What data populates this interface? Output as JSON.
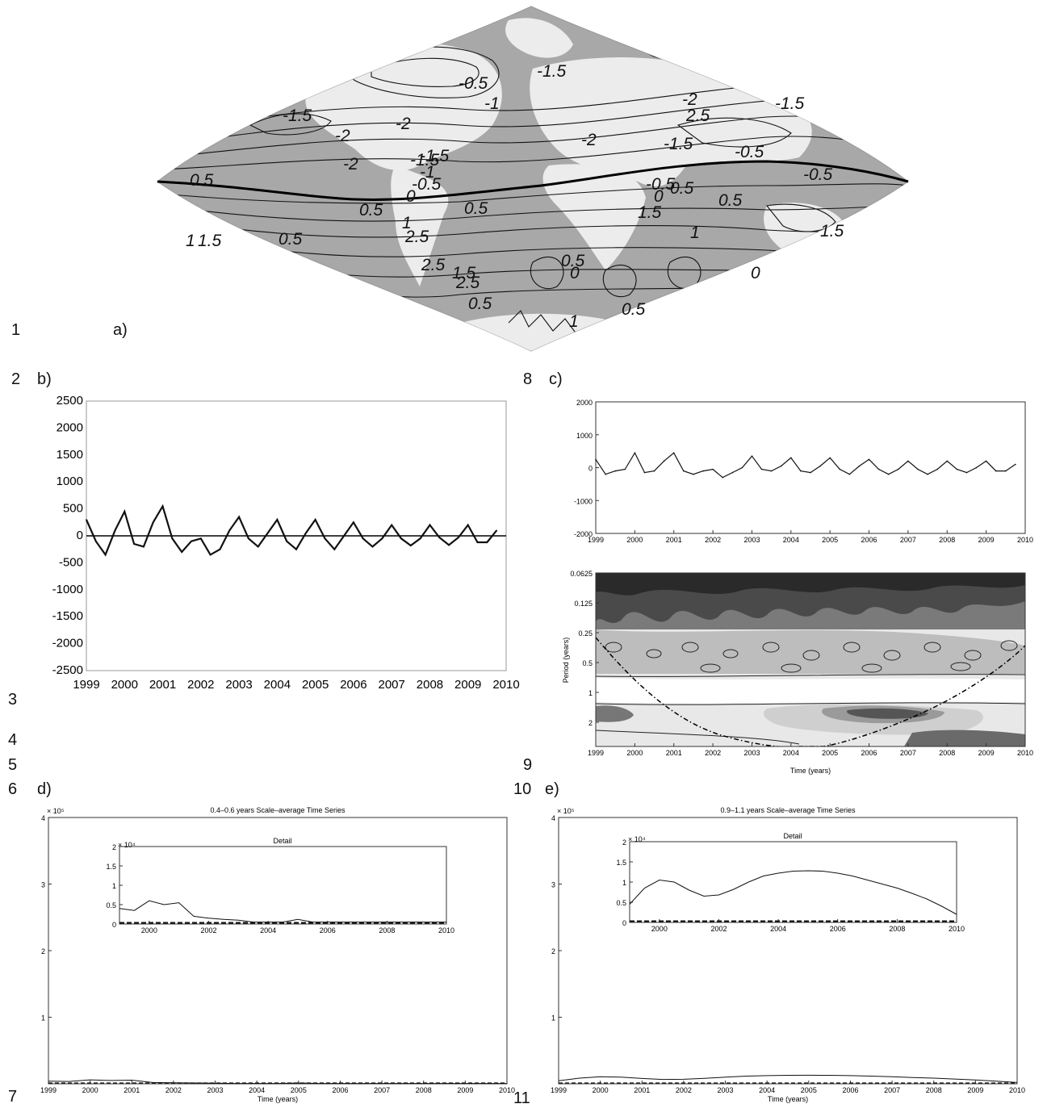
{
  "line_numbers": [
    "1",
    "2",
    "3",
    "4",
    "5",
    "6",
    "7",
    "8",
    "9",
    "10",
    "11"
  ],
  "panel_labels": {
    "a": "a)",
    "b": "b)",
    "c": "c)",
    "d": "d)",
    "e": "e)"
  },
  "map_contour_labels": [
    "-0.5",
    "-1",
    "-1.5",
    "-1.5",
    "-2",
    "-2",
    "-2",
    "-1.5",
    "-2",
    "2.5",
    "-1.5",
    "-1.5",
    "-0.5",
    "-2",
    "-1.5",
    "-1",
    "-0.5",
    "-0.5",
    "0.5",
    "0.5",
    "0.5",
    "0",
    "0.5",
    "0",
    "-0.5",
    "0.5",
    "0.5",
    "1.5",
    "1",
    "1",
    "2.5",
    "1.5",
    "2.5",
    "1.5",
    "2.5",
    "1.5",
    "1",
    "0.5",
    "0",
    "0",
    "0.5",
    "0.5",
    "1"
  ],
  "colors": {
    "land": "#eeeeee",
    "ocean": "#a8a8a8",
    "contour": "#111111",
    "axis": "#222222"
  },
  "chart_data": [
    {
      "panel": "b",
      "type": "line",
      "xlim": [
        1999,
        2010
      ],
      "ylim": [
        -2500,
        2500
      ],
      "x_ticks": [
        "1999",
        "2000",
        "2001",
        "2002",
        "2003",
        "2004",
        "2005",
        "2006",
        "2007",
        "2008",
        "2009",
        "2010"
      ],
      "y_ticks": [
        "2500",
        "2000",
        "1500",
        "1000",
        "500",
        "0",
        "-500",
        "-1000",
        "-1500",
        "-2000",
        "-2500"
      ],
      "x": [
        1999.0,
        1999.25,
        1999.5,
        1999.75,
        2000.0,
        2000.25,
        2000.5,
        2000.75,
        2001.0,
        2001.25,
        2001.5,
        2001.75,
        2002.0,
        2002.25,
        2002.5,
        2002.75,
        2003.0,
        2003.25,
        2003.5,
        2003.75,
        2004.0,
        2004.25,
        2004.5,
        2004.75,
        2005.0,
        2005.25,
        2005.5,
        2005.75,
        2006.0,
        2006.25,
        2006.5,
        2006.75,
        2007.0,
        2007.25,
        2007.5,
        2007.75,
        2008.0,
        2008.25,
        2008.5,
        2008.75,
        2009.0,
        2009.25,
        2009.5,
        2009.75
      ],
      "y": [
        300,
        -100,
        -350,
        100,
        450,
        -150,
        -200,
        250,
        550,
        -50,
        -300,
        -100,
        -50,
        -350,
        -250,
        100,
        350,
        -50,
        -200,
        50,
        300,
        -100,
        -250,
        50,
        300,
        -50,
        -250,
        0,
        250,
        -50,
        -200,
        -50,
        200,
        -50,
        -180,
        -50,
        200,
        -30,
        -170,
        -30,
        200,
        -120,
        -120,
        100
      ]
    },
    {
      "panel": "c-top",
      "type": "line",
      "xlim": [
        1999,
        2010
      ],
      "ylim": [
        -2000,
        2000
      ],
      "x_ticks": [
        "1999",
        "2000",
        "2001",
        "2002",
        "2003",
        "2004",
        "2005",
        "2006",
        "2007",
        "2008",
        "2009",
        "2010"
      ],
      "y_ticks": [
        "2000",
        "1000",
        "0",
        "-1000",
        "-2000"
      ],
      "x": [
        1999.0,
        1999.25,
        1999.5,
        1999.75,
        2000.0,
        2000.25,
        2000.5,
        2000.75,
        2001.0,
        2001.25,
        2001.5,
        2001.75,
        2002.0,
        2002.25,
        2002.5,
        2002.75,
        2003.0,
        2003.25,
        2003.5,
        2003.75,
        2004.0,
        2004.25,
        2004.5,
        2004.75,
        2005.0,
        2005.25,
        2005.5,
        2005.75,
        2006.0,
        2006.25,
        2006.5,
        2006.75,
        2007.0,
        2007.25,
        2007.5,
        2007.75,
        2008.0,
        2008.25,
        2008.5,
        2008.75,
        2009.0,
        2009.25,
        2009.5,
        2009.75
      ],
      "y": [
        250,
        -200,
        -100,
        -50,
        450,
        -150,
        -100,
        200,
        450,
        -100,
        -200,
        -100,
        -50,
        -300,
        -150,
        0,
        350,
        -50,
        -100,
        50,
        300,
        -100,
        -150,
        50,
        300,
        -50,
        -200,
        50,
        250,
        -50,
        -200,
        -50,
        200,
        -50,
        -200,
        -50,
        200,
        -50,
        -150,
        0,
        200,
        -100,
        -100,
        100
      ]
    },
    {
      "panel": "c-bottom",
      "type": "heatmap",
      "xlabel": "Time (years)",
      "ylabel": "Period (years)",
      "xlim": [
        1999,
        2010
      ],
      "x_ticks": [
        "1999",
        "2000",
        "2001",
        "2002",
        "2003",
        "2004",
        "2005",
        "2006",
        "2007",
        "2008",
        "2009",
        "2010"
      ],
      "y_ticks": [
        "0.0625",
        "0.125",
        "0.25",
        "0.5",
        "1",
        "2"
      ]
    },
    {
      "panel": "d",
      "type": "line",
      "title": "0.4–0.6 years Scale–average Time Series",
      "xlabel": "Time (years)",
      "y_exponent": "× 10⁵",
      "xlim": [
        1999,
        2010
      ],
      "ylim": [
        0,
        4
      ],
      "x_ticks": [
        "1999",
        "2000",
        "2001",
        "2002",
        "2003",
        "2004",
        "2005",
        "2006",
        "2007",
        "2008",
        "2009",
        "2010"
      ],
      "y_ticks": [
        "4",
        "3",
        "2",
        "1"
      ],
      "inset": {
        "title": "Detail",
        "y_exponent": "× 10⁴",
        "xlim": [
          1999,
          2010
        ],
        "ylim": [
          0,
          2
        ],
        "x_ticks": [
          "2000",
          "2002",
          "2004",
          "2006",
          "2008",
          "2010"
        ],
        "y_ticks": [
          "2",
          "1.5",
          "1",
          "0.5",
          "0"
        ],
        "x": [
          1999.0,
          1999.5,
          2000.0,
          2000.5,
          2001.0,
          2001.5,
          2002.0,
          2002.5,
          2003.0,
          2003.5,
          2004.0,
          2004.5,
          2005.0,
          2005.5,
          2006.0,
          2006.5,
          2007.0,
          2008.0,
          2009.0,
          2010.0
        ],
        "y": [
          0.4,
          0.35,
          0.6,
          0.5,
          0.55,
          0.2,
          0.15,
          0.12,
          0.1,
          0.05,
          0.05,
          0.05,
          0.12,
          0.05,
          0.05,
          0.05,
          0.05,
          0.05,
          0.05,
          0.05
        ]
      }
    },
    {
      "panel": "e",
      "type": "line",
      "title": "0.9–1.1 years Scale–average Time Series",
      "xlabel": "Time (years)",
      "y_exponent": "× 10⁵",
      "xlim": [
        1999,
        2010
      ],
      "ylim": [
        0,
        4
      ],
      "x_ticks": [
        "1999",
        "2000",
        "2001",
        "2002",
        "2003",
        "2004",
        "2005",
        "2006",
        "2007",
        "2008",
        "2009",
        "2010"
      ],
      "y_ticks": [
        "4",
        "3",
        "2",
        "1"
      ],
      "inset": {
        "title": "Detail",
        "y_exponent": "× 10⁴",
        "xlim": [
          1999,
          2010
        ],
        "ylim": [
          0,
          2
        ],
        "x_ticks": [
          "2000",
          "2002",
          "2004",
          "2006",
          "2008",
          "2010"
        ],
        "y_ticks": [
          "2",
          "1.5",
          "1",
          "0.5",
          "0"
        ],
        "x": [
          1999.0,
          1999.5,
          2000.0,
          2000.5,
          2001.0,
          2001.5,
          2002.0,
          2002.5,
          2003.0,
          2003.5,
          2004.0,
          2004.5,
          2005.0,
          2005.5,
          2006.0,
          2006.5,
          2007.0,
          2007.5,
          2008.0,
          2008.5,
          2009.0,
          2009.5,
          2010.0
        ],
        "y": [
          0.45,
          0.85,
          1.05,
          1.0,
          0.8,
          0.65,
          0.68,
          0.82,
          1.0,
          1.15,
          1.22,
          1.27,
          1.28,
          1.27,
          1.22,
          1.15,
          1.05,
          0.95,
          0.85,
          0.72,
          0.58,
          0.4,
          0.2
        ]
      }
    }
  ]
}
